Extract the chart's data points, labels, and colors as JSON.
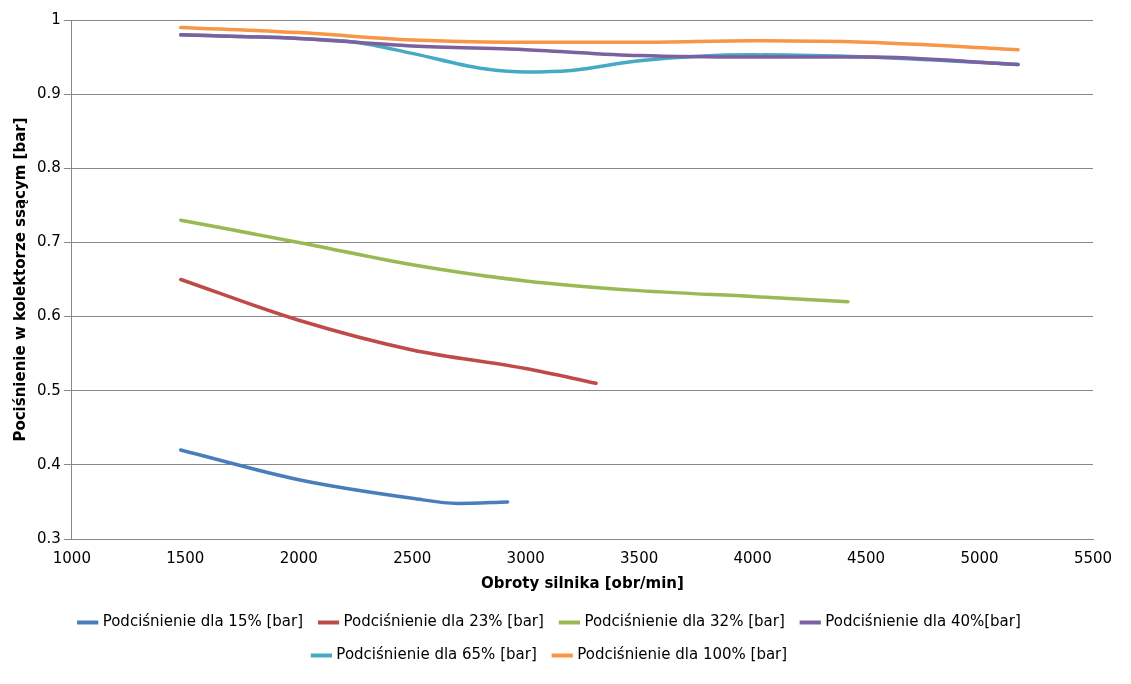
{
  "chart_data": {
    "type": "line",
    "xlabel": "Obroty silnika [obr/min]",
    "ylabel": "Pociśnienie w kolektorze ssącym [bar]",
    "xlim": [
      1000,
      5500
    ],
    "xticks": [
      1000,
      1500,
      2000,
      2500,
      3000,
      3500,
      4000,
      4500,
      5000,
      5500
    ],
    "ylim": [
      0.3,
      1
    ],
    "yticks": [
      0.3,
      0.4,
      0.5,
      0.6,
      0.7,
      0.8,
      0.9,
      1
    ],
    "grid": "y",
    "legend": "bottom",
    "marker": "none",
    "series": [
      {
        "name": "Podciśnienie dla 15% [bar]",
        "color": "#4a7ebb",
        "x": [
          1480,
          2000,
          2500,
          2700,
          2920
        ],
        "values": [
          0.42,
          0.38,
          0.355,
          0.348,
          0.35
        ]
      },
      {
        "name": "Podciśnienie dla 23% [bar]",
        "color": "#be4b48",
        "x": [
          1480,
          2000,
          2500,
          3000,
          3310
        ],
        "values": [
          0.65,
          0.595,
          0.555,
          0.53,
          0.51
        ]
      },
      {
        "name": "Podciśnienie dla 32% [bar]",
        "color": "#98b954",
        "x": [
          1480,
          2000,
          2500,
          3000,
          3500,
          4000,
          4420
        ],
        "values": [
          0.73,
          0.7,
          0.67,
          0.648,
          0.635,
          0.627,
          0.62
        ]
      },
      {
        "name": "Podciśnienie dla 40%[bar]",
        "color": "#7d60a0",
        "x": [
          1480,
          2000,
          2500,
          3000,
          3500,
          4000,
          4500,
          5170
        ],
        "values": [
          0.98,
          0.975,
          0.965,
          0.96,
          0.952,
          0.95,
          0.95,
          0.94
        ]
      },
      {
        "name": "Podciśnienie dla 65% [bar]",
        "color": "#46aac5",
        "x": [
          1480,
          2000,
          2250,
          2500,
          2800,
          3000,
          3200,
          3500,
          4000,
          4500,
          5170
        ],
        "values": [
          0.98,
          0.975,
          0.97,
          0.955,
          0.935,
          0.93,
          0.932,
          0.945,
          0.953,
          0.95,
          0.94
        ]
      },
      {
        "name": "Podciśnienie dla 100% [bar]",
        "color": "#f79646",
        "x": [
          1480,
          2000,
          2500,
          3000,
          3500,
          4000,
          4500,
          5170
        ],
        "values": [
          0.99,
          0.983,
          0.973,
          0.97,
          0.97,
          0.972,
          0.97,
          0.96
        ]
      }
    ]
  }
}
